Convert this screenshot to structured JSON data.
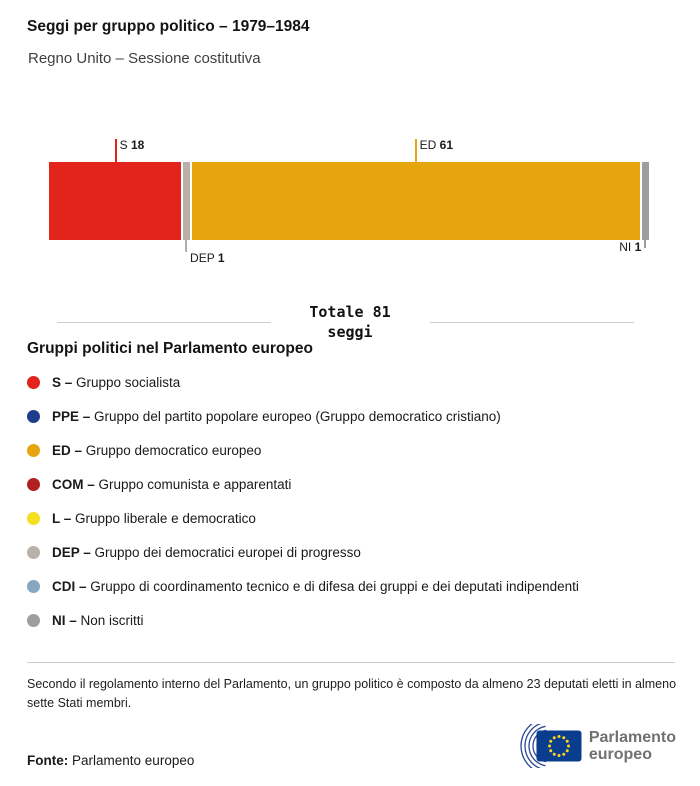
{
  "header": {
    "title": "Seggi per gruppo politico – 1979–1984",
    "subtitle": "Regno Unito – Sessione costitutiva"
  },
  "chart_data": {
    "type": "bar",
    "variant": "horizontal-stacked-seat-bar",
    "title": "Seggi per gruppo politico – 1979–1984",
    "subtitle": "Regno Unito – Sessione costitutiva",
    "total_seats": 81,
    "total_label": "Totale 81",
    "total_sublabel": "seggi",
    "categories": [
      "S",
      "DEP",
      "ED",
      "NI"
    ],
    "values": [
      18,
      1,
      61,
      1
    ],
    "segments": [
      {
        "code": "S",
        "seats": 18,
        "color": "#e2241d",
        "callout": {
          "side": "top",
          "align": "left",
          "row": "",
          "line_color": "#e2241d"
        }
      },
      {
        "code": "DEP",
        "seats": 1,
        "color": "#b7b1a7",
        "callout": {
          "side": "bottom",
          "align": "left",
          "row": "far",
          "line_color": "#b3ada3"
        }
      },
      {
        "code": "ED",
        "seats": 61,
        "color": "#e6a50f",
        "callout": {
          "side": "top",
          "align": "left",
          "row": "",
          "line_color": "#e6a50f"
        }
      },
      {
        "code": "NI",
        "seats": 1,
        "color": "#9e9e9d",
        "callout": {
          "side": "bottom",
          "align": "right",
          "row": "near",
          "line_color": "#9e9e9d"
        }
      }
    ],
    "legend_position": "bottom",
    "grid": false
  },
  "legend": {
    "title": "Gruppi politici nel Parlamento europeo",
    "items": [
      {
        "code": "S –",
        "label": "Gruppo socialista",
        "color": "#e2241d"
      },
      {
        "code": "PPE –",
        "label": "Gruppo del partito popolare europeo (Gruppo democratico cristiano)",
        "color": "#1f3d8c"
      },
      {
        "code": "ED –",
        "label": "Gruppo democratico europeo",
        "color": "#e6a50f"
      },
      {
        "code": "COM –",
        "label": "Gruppo comunista e apparentati",
        "color": "#b0201e"
      },
      {
        "code": "L –",
        "label": "Gruppo liberale e democratico",
        "color": "#f4e01f"
      },
      {
        "code": "DEP –",
        "label": "Gruppo dei democratici europei di progresso",
        "color": "#b7b1a7"
      },
      {
        "code": "CDI –",
        "label": "Gruppo di coordinamento tecnico e di difesa dei gruppi e dei deputati indipendenti",
        "color": "#85a8c0"
      },
      {
        "code": "NI –",
        "label": "Non iscritti",
        "color": "#9e9e9d"
      }
    ]
  },
  "footnote": "Secondo il regolamento interno del Parlamento, un gruppo politico è composto da almeno 23 deputati eletti in almeno sette Stati membri.",
  "source": {
    "label": "Fonte:",
    "value": "Parlamento europeo"
  },
  "logo": {
    "line1": "Parlamento",
    "line2": "europeo",
    "flag_color": "#0b3d8f",
    "star_color": "#ffd617"
  }
}
